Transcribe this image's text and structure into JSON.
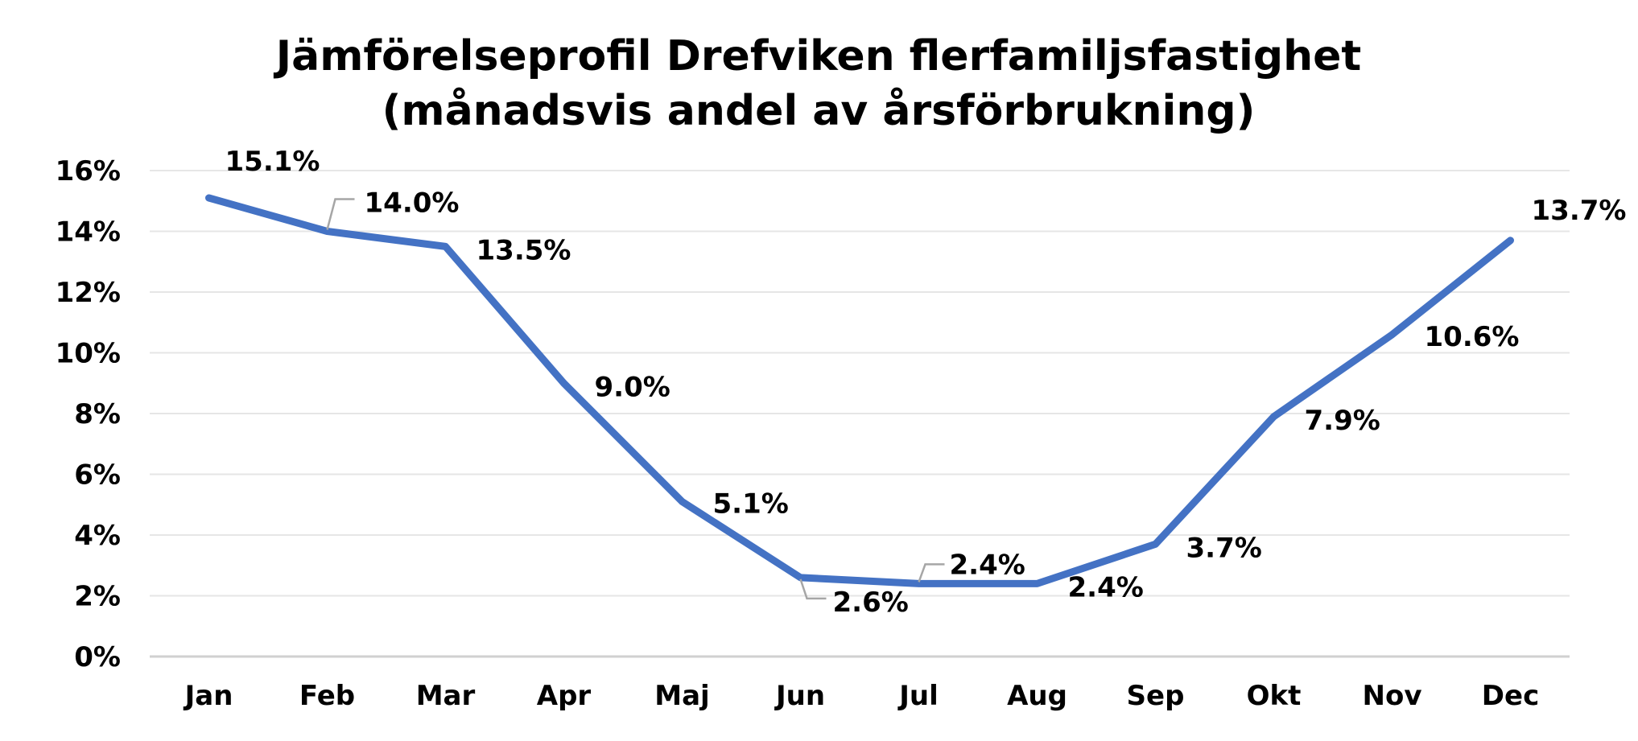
{
  "chart_data": {
    "type": "line",
    "title": "Jämförelseprofil Drefviken flerfamiljsfastighet",
    "subtitle": "(månadsvis andel av årsförbrukning)",
    "categories": [
      "Jan",
      "Feb",
      "Mar",
      "Apr",
      "Maj",
      "Jun",
      "Jul",
      "Aug",
      "Sep",
      "Okt",
      "Nov",
      "Dec"
    ],
    "series": [
      {
        "values": [
          15.1,
          14.0,
          13.5,
          9.0,
          5.1,
          2.6,
          2.4,
          2.4,
          3.7,
          7.9,
          10.6,
          13.7
        ],
        "data_labels": [
          "15.1%",
          "14.0%",
          "13.5%",
          "9.0%",
          "5.1%",
          "2.6%",
          "2.4%",
          "2.4%",
          "3.7%",
          "7.9%",
          "10.6%",
          "13.7%"
        ]
      }
    ],
    "ylim": [
      0,
      16
    ],
    "y_ticks": [
      "0%",
      "2%",
      "4%",
      "6%",
      "8%",
      "10%",
      "12%",
      "14%",
      "16%"
    ],
    "grid": true,
    "legend": "none",
    "colors": {
      "line": "#4472C4",
      "grid": "#e6e6e6",
      "axis": "#d0d0d0",
      "leader": "#a6a6a6"
    }
  }
}
